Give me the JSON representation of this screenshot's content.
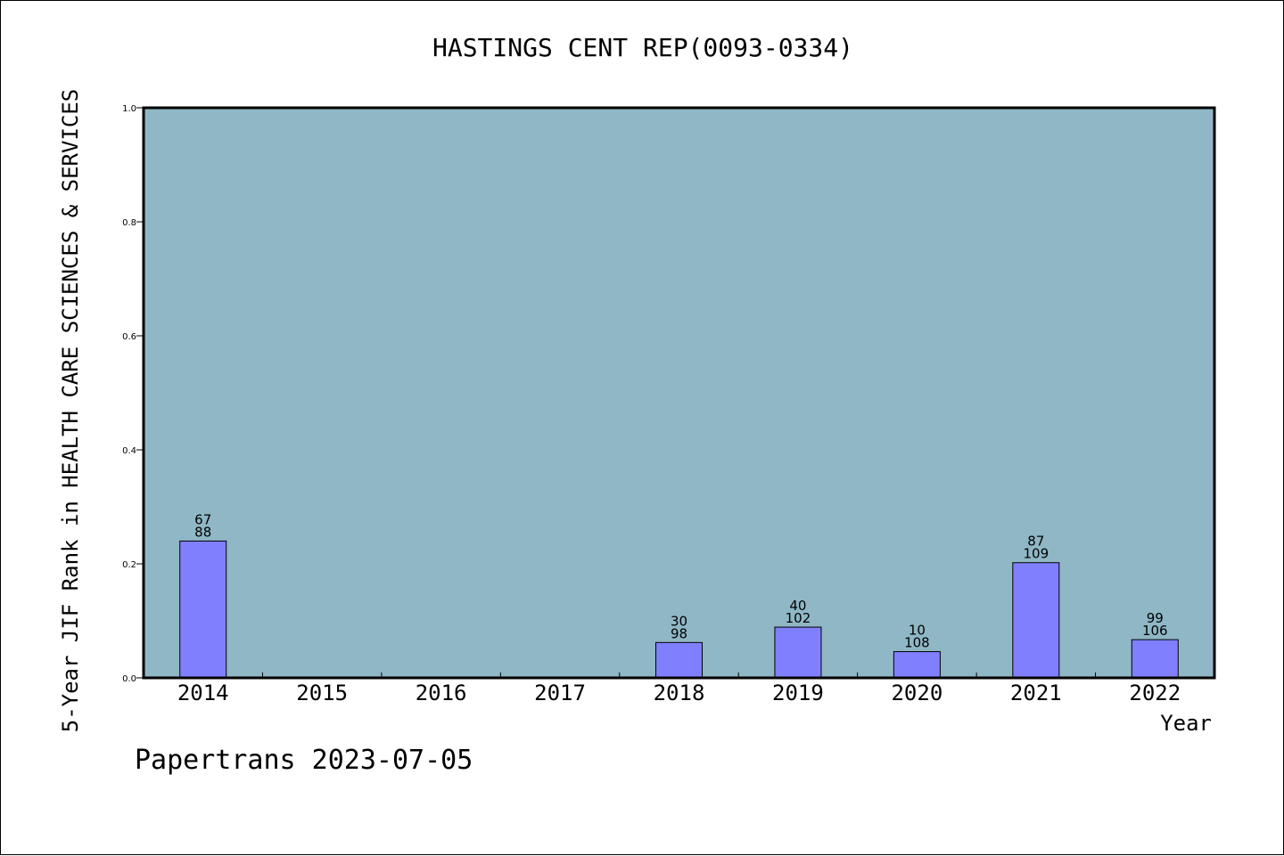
{
  "colors": {
    "plot_background": "#8fb7c5",
    "bar_fill": "#8080ff",
    "bar_stroke": "#000000",
    "page_background": "#ffffff"
  },
  "chart_data": {
    "type": "bar",
    "title": "HASTINGS CENT REP(0093-0334)",
    "xlabel": "Year",
    "ylabel": "5-Year JIF Rank in HEALTH CARE SCIENCES & SERVICES",
    "categories": [
      "2014",
      "2015",
      "2016",
      "2017",
      "2018",
      "2019",
      "2020",
      "2021",
      "2022"
    ],
    "values": [
      0.24,
      null,
      null,
      null,
      0.062,
      0.089,
      0.046,
      0.202,
      0.067
    ],
    "rank_labels": [
      "67",
      "",
      "",
      "",
      "30",
      "40",
      "10",
      "87",
      "99"
    ],
    "total_labels": [
      "88",
      "",
      "",
      "",
      "98",
      "102",
      "108",
      "109",
      "106"
    ],
    "ylim": [
      0,
      1.0
    ],
    "yticks": [
      "0.0",
      "0.2",
      "0.4",
      "0.6",
      "0.8",
      "1.0"
    ],
    "ytick_values": [
      0,
      0.2,
      0.4,
      0.6,
      0.8,
      1.0
    ],
    "grid": false,
    "legend": "none"
  },
  "footer": {
    "text": "Papertrans 2023-07-05"
  }
}
